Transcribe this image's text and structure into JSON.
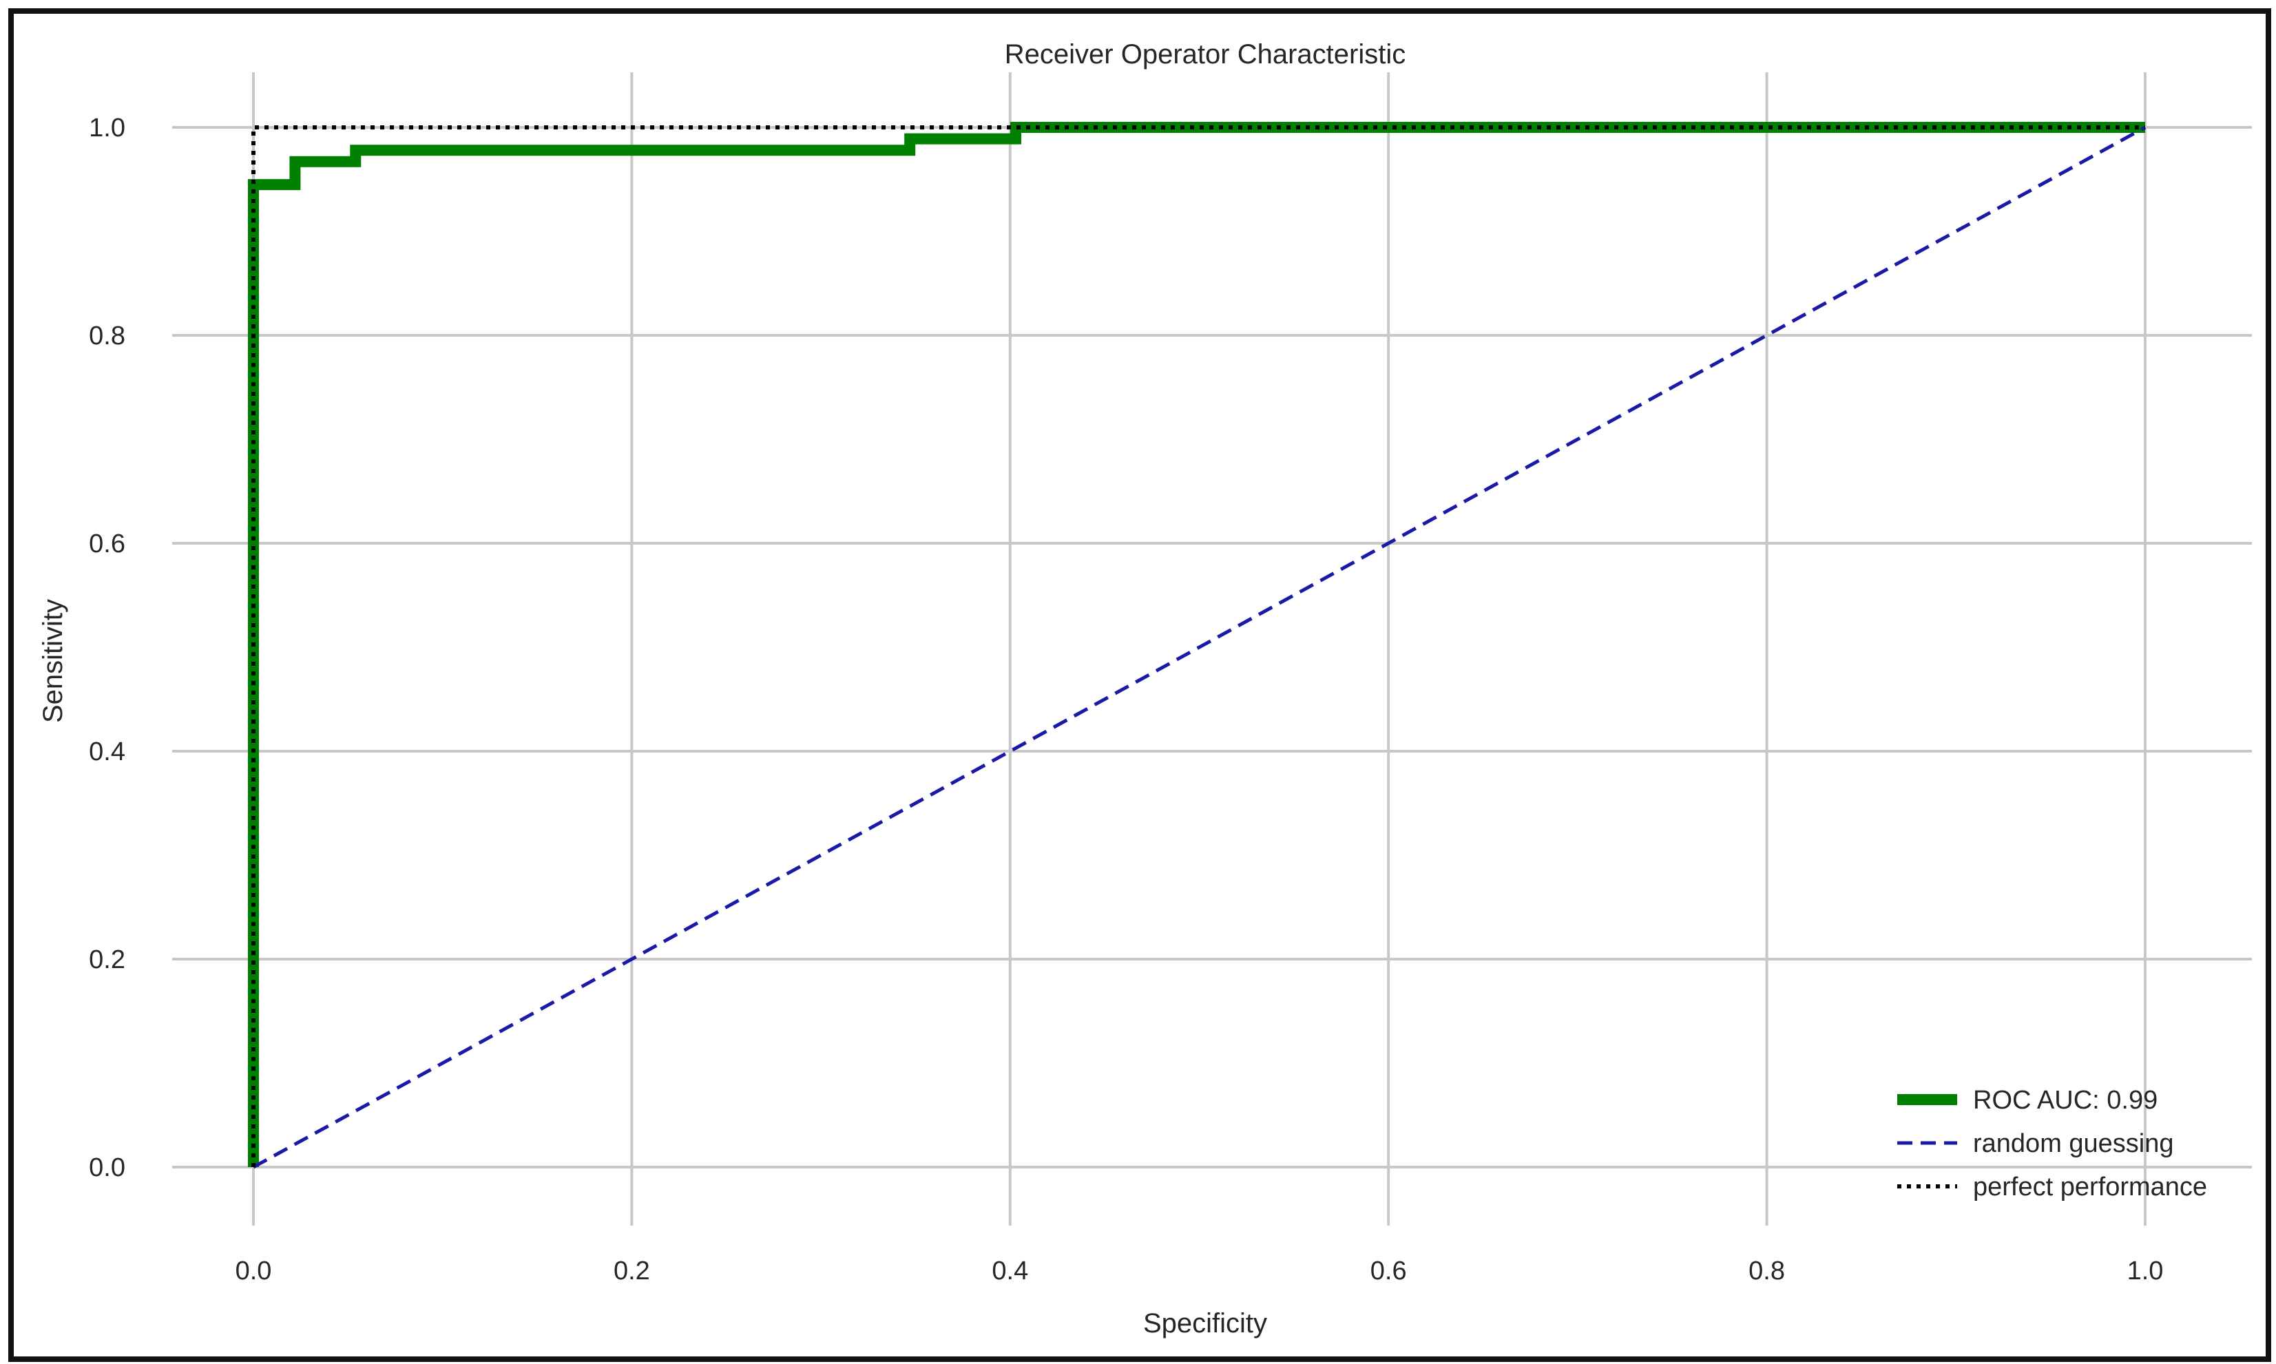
{
  "chart_data": {
    "type": "line",
    "title": "Receiver Operator Characteristic",
    "xlabel": "Specificity",
    "ylabel": "Sensitivity",
    "xlim": [
      0,
      1
    ],
    "ylim": [
      0,
      1
    ],
    "x_ticks": [
      "0.0",
      "0.2",
      "0.4",
      "0.6",
      "0.8",
      "1.0"
    ],
    "y_ticks": [
      "0.0",
      "0.2",
      "0.4",
      "0.6",
      "0.8",
      "1.0"
    ],
    "grid": true,
    "legend_position": "bottom-right",
    "series": [
      {
        "name": "ROC AUC: 0.99",
        "color": "#008000",
        "style": "solid",
        "x": [
          0.0,
          0.0,
          0.022,
          0.022,
          0.054,
          0.054,
          0.347,
          0.347,
          0.403,
          0.403,
          1.0
        ],
        "y": [
          0.0,
          0.945,
          0.945,
          0.967,
          0.967,
          0.978,
          0.978,
          0.989,
          0.989,
          1.0,
          1.0
        ]
      },
      {
        "name": "random guessing",
        "color": "#1a1aa6",
        "style": "dashed",
        "x": [
          0.0,
          1.0
        ],
        "y": [
          0.0,
          1.0
        ]
      },
      {
        "name": "perfect performance",
        "color": "#000000",
        "style": "dotted",
        "x": [
          0.0,
          0.0,
          1.0
        ],
        "y": [
          0.0,
          1.0,
          1.0
        ]
      }
    ]
  }
}
